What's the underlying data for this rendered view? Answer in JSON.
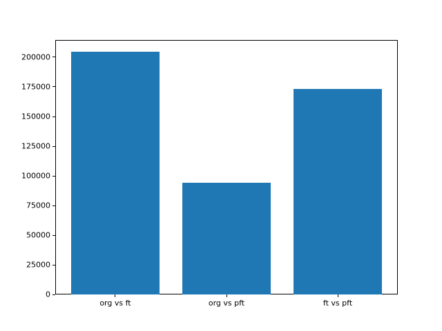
{
  "figure": {
    "background_color": "#ffffff",
    "title": ""
  },
  "chart_data": {
    "type": "bar",
    "categories": [
      "org vs ft",
      "org vs pft",
      "ft vs pft"
    ],
    "values": [
      204500,
      94500,
      173000
    ],
    "title": "",
    "xlabel": "",
    "ylabel": "",
    "ylim": [
      0,
      214725
    ],
    "xlim": [
      -0.54,
      2.54
    ],
    "yticks": [
      0,
      25000,
      50000,
      75000,
      100000,
      125000,
      150000,
      175000,
      200000
    ],
    "bar_width_units": 0.8,
    "bar_color": "#1f77b4",
    "spine_color": "#000000",
    "tick_color": "#000000",
    "text_color": "#000000",
    "grid": false,
    "legend": false
  }
}
